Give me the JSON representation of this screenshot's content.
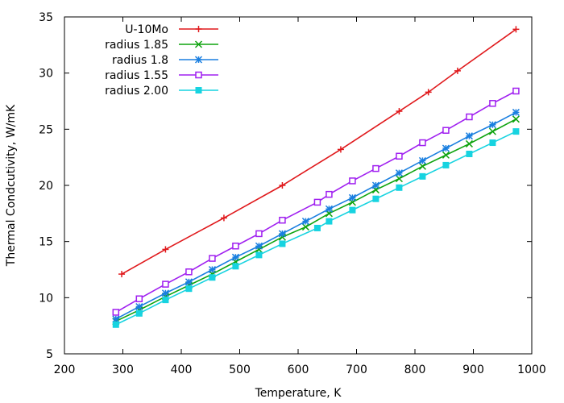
{
  "chart_data": {
    "type": "line",
    "title": "",
    "xlabel": "Temperature, K",
    "ylabel": "Thermal Condcutivity, W/mK",
    "xlim": [
      200,
      1000
    ],
    "ylim": [
      5,
      35
    ],
    "xticks": [
      200,
      300,
      400,
      500,
      600,
      700,
      800,
      900,
      1000
    ],
    "yticks": [
      5,
      10,
      15,
      20,
      25,
      30,
      35
    ],
    "grid": false,
    "legend_position": "top-left",
    "series": [
      {
        "name": "U-10Mo",
        "color": "#e0191c",
        "marker": "plus",
        "x": [
          298,
          373,
          473,
          573,
          673,
          773,
          823,
          873,
          973
        ],
        "y": [
          12.1,
          14.3,
          17.1,
          20.0,
          23.2,
          26.6,
          28.3,
          30.2,
          33.9
        ]
      },
      {
        "name": "radius 1.85",
        "color": "#0ea30e",
        "marker": "x",
        "x": [
          288,
          328,
          373,
          413,
          453,
          493,
          533,
          573,
          613,
          653,
          693,
          733,
          773,
          813,
          853,
          893,
          933,
          973
        ],
        "y": [
          7.9,
          8.9,
          10.1,
          11.1,
          12.1,
          13.2,
          14.3,
          15.4,
          16.3,
          17.5,
          18.5,
          19.6,
          20.6,
          21.7,
          22.7,
          23.7,
          24.8,
          25.9
        ]
      },
      {
        "name": "radius 1.8",
        "color": "#1a7fe0",
        "marker": "star",
        "x": [
          288,
          328,
          373,
          413,
          453,
          493,
          533,
          573,
          613,
          653,
          693,
          733,
          773,
          813,
          853,
          893,
          933,
          973
        ],
        "y": [
          8.1,
          9.2,
          10.4,
          11.4,
          12.5,
          13.6,
          14.6,
          15.7,
          16.8,
          17.9,
          18.9,
          20.0,
          21.1,
          22.2,
          23.3,
          24.4,
          25.4,
          26.5
        ]
      },
      {
        "name": "radius 1.55",
        "color": "#a020f0",
        "marker": "open-square",
        "x": [
          288,
          328,
          373,
          413,
          453,
          493,
          533,
          573,
          633,
          653,
          693,
          733,
          773,
          813,
          853,
          893,
          933,
          973
        ],
        "y": [
          8.7,
          9.9,
          11.2,
          12.3,
          13.5,
          14.6,
          15.7,
          16.9,
          18.5,
          19.2,
          20.4,
          21.5,
          22.6,
          23.8,
          24.9,
          26.1,
          27.3,
          28.4
        ]
      },
      {
        "name": "radius 2.00",
        "color": "#17d3e0",
        "marker": "filled-square",
        "x": [
          288,
          328,
          373,
          413,
          453,
          493,
          533,
          573,
          633,
          653,
          693,
          733,
          773,
          813,
          853,
          893,
          933,
          973
        ],
        "y": [
          7.6,
          8.6,
          9.8,
          10.8,
          11.8,
          12.8,
          13.8,
          14.8,
          16.2,
          16.8,
          17.8,
          18.8,
          19.8,
          20.8,
          21.8,
          22.8,
          23.8,
          24.8
        ]
      }
    ]
  }
}
